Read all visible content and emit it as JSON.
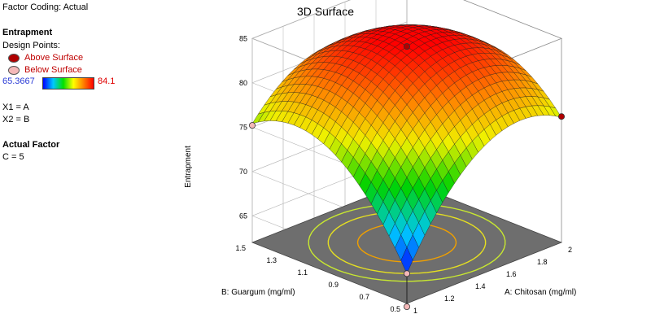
{
  "sidebar": {
    "factor_coding": "Factor Coding: Actual",
    "response_title": "Entrapment",
    "design_points_label": "Design Points:",
    "above_surface": "Above Surface",
    "below_surface": "Below Surface",
    "color_min": "65.3667",
    "color_max": "84.1",
    "x1_mapping": "X1 = A",
    "x2_mapping": "X2 = B",
    "actual_factor_title": "Actual Factor",
    "actual_factor_value": "C = 5"
  },
  "colors": {
    "above_point": "#b00000",
    "below_point": "#f4b8b8",
    "floor": "#6e6e6e",
    "min_label": "#2a3bd6",
    "max_label": "#e00000"
  },
  "chart_data": {
    "type": "surface",
    "title": "3D Surface",
    "zlabel": "Entrapment",
    "xlabel": "A: Chitosan (mg/ml)",
    "ylabel": "B: Guargum (mg/ml)",
    "x_ticks": [
      "1",
      "1.2",
      "1.4",
      "1.6",
      "1.8",
      "2"
    ],
    "y_ticks": [
      "0.5",
      "0.7",
      "0.9",
      "1.1",
      "1.3",
      "1.5"
    ],
    "z_ticks": [
      "65",
      "70",
      "75",
      "80",
      "85"
    ],
    "xlim": [
      1,
      2
    ],
    "ylim": [
      0.5,
      1.5
    ],
    "zlim": [
      62,
      85
    ],
    "color_range": [
      65.3667,
      84.1
    ],
    "surface_corners": [
      {
        "x": 1,
        "y": 0.5,
        "z": 65.37
      },
      {
        "x": 2,
        "y": 0.5,
        "z": 76.1
      },
      {
        "x": 1,
        "y": 1.5,
        "z": 75.4
      },
      {
        "x": 2,
        "y": 1.5,
        "z": 75.0
      }
    ],
    "surface_max": {
      "x": 1.5,
      "y": 1.0,
      "z": 84.1
    },
    "design_points": [
      {
        "x": 1.5,
        "y": 1.0,
        "z": 84.1,
        "position": "above"
      },
      {
        "x": 2,
        "y": 0.5,
        "z": 76.2,
        "position": "above"
      },
      {
        "x": 1,
        "y": 1.5,
        "z": 75.2,
        "position": "below"
      },
      {
        "x": 1,
        "y": 0.5,
        "z": 65.37,
        "position": "below"
      }
    ],
    "grid": true
  }
}
